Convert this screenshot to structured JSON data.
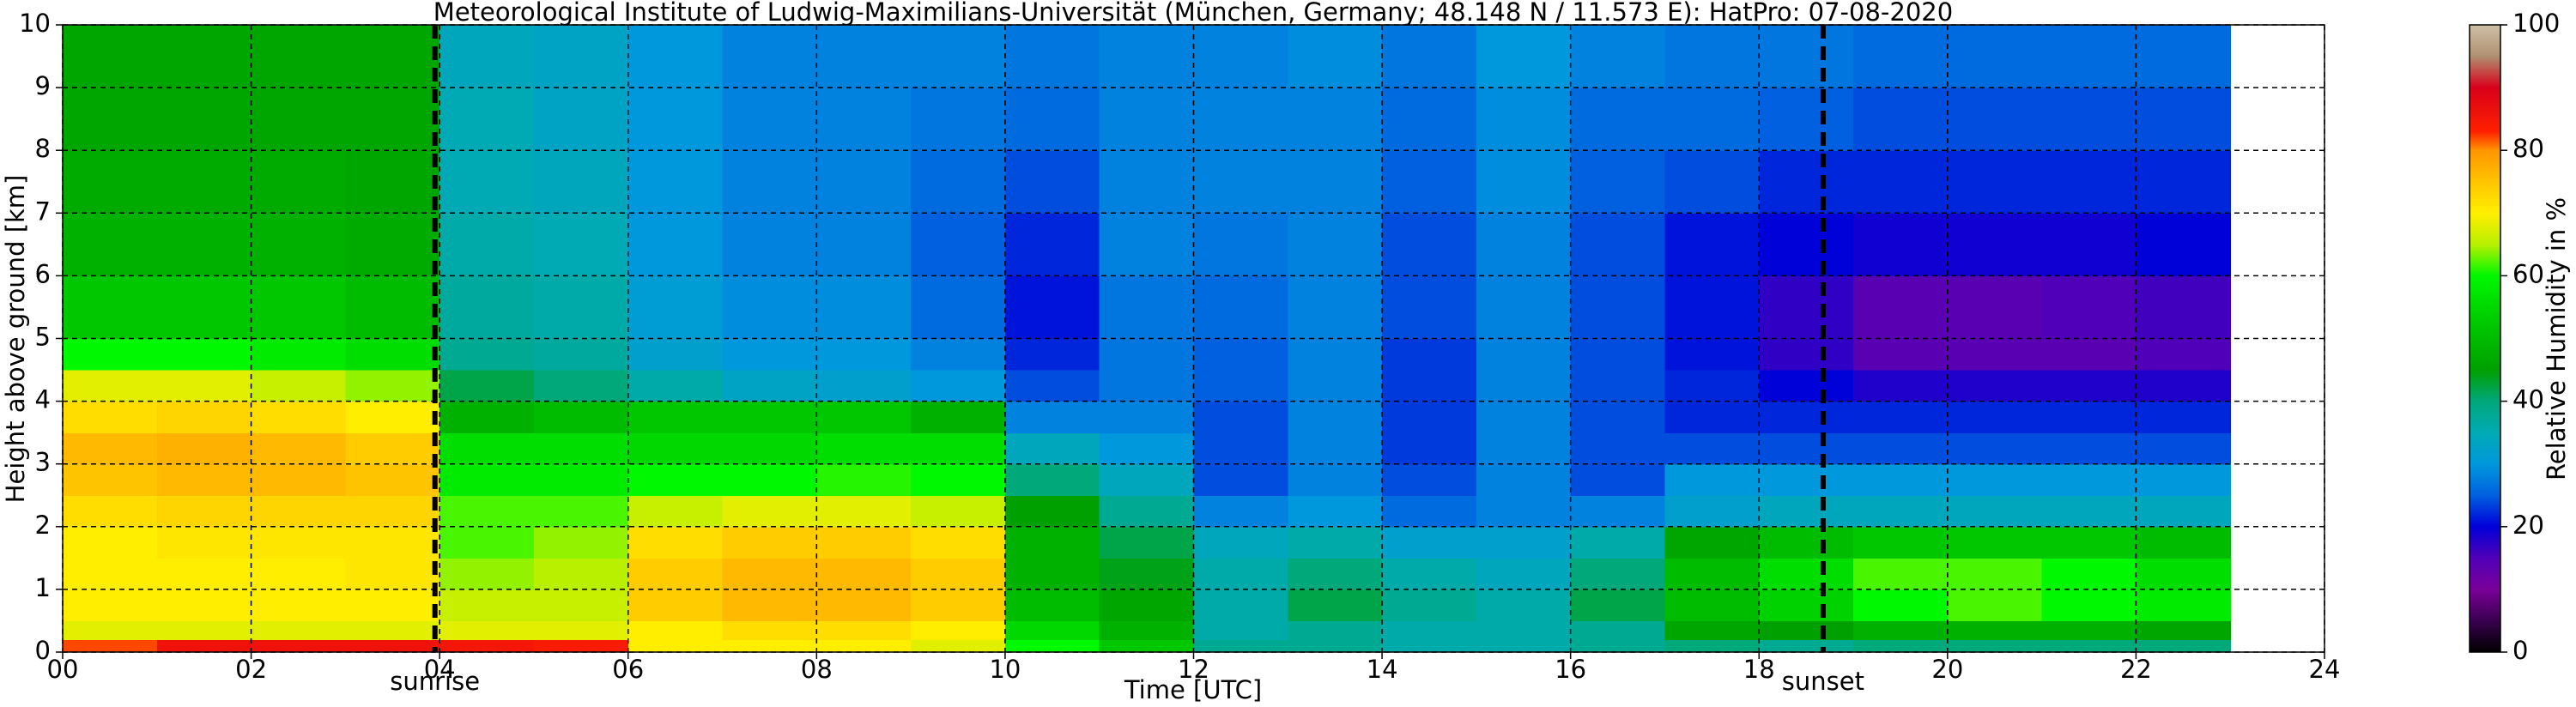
{
  "chart_data": {
    "type": "heatmap",
    "title": "Meteorological Institute of Ludwig-Maximilians-Universität (München, Germany; 48.148 N / 11.573 E):    HatPro: 07-08-2020",
    "x_label": "Time [UTC]",
    "y_label": "Height above ground [km]",
    "colorbar_label": "Relative Humidity in %",
    "x_edges": [
      0,
      1,
      2,
      3,
      4,
      5,
      6,
      7,
      8,
      9,
      10,
      11,
      12,
      13,
      14,
      15,
      16,
      17,
      18,
      19,
      20,
      21,
      22,
      23
    ],
    "y_edges": [
      0,
      0.2,
      0.5,
      1,
      1.5,
      2,
      2.5,
      3,
      3.5,
      4,
      4.5,
      5,
      6,
      7,
      8,
      9,
      10
    ],
    "values": [
      [
        82,
        68,
        70,
        70,
        70,
        72,
        75,
        76,
        72,
        68,
        60,
        52,
        48,
        47,
        46,
        46
      ],
      [
        86,
        68,
        70,
        70,
        71,
        73,
        76,
        77,
        73,
        68,
        60,
        52,
        48,
        47,
        46,
        46
      ],
      [
        86,
        68,
        70,
        70,
        71,
        73,
        76,
        76,
        72,
        66,
        58,
        52,
        48,
        47,
        46,
        46
      ],
      [
        86,
        68,
        70,
        71,
        71,
        73,
        75,
        74,
        70,
        64,
        56,
        50,
        47,
        46,
        46,
        46
      ],
      [
        85,
        68,
        66,
        64,
        62,
        62,
        58,
        56,
        48,
        42,
        38,
        37,
        36,
        35,
        35,
        34
      ],
      [
        84,
        68,
        66,
        65,
        64,
        62,
        58,
        56,
        50,
        40,
        37,
        36,
        35,
        34,
        33,
        33
      ],
      [
        70,
        70,
        74,
        74,
        72,
        66,
        60,
        55,
        52,
        36,
        32,
        31,
        30,
        30,
        30,
        30
      ],
      [
        70,
        72,
        76,
        76,
        74,
        68,
        60,
        55,
        52,
        33,
        30,
        29,
        28,
        28,
        28,
        28
      ],
      [
        70,
        72,
        76,
        76,
        74,
        68,
        61,
        56,
        52,
        32,
        30,
        29,
        28,
        28,
        28,
        28
      ],
      [
        68,
        70,
        74,
        74,
        72,
        66,
        60,
        56,
        48,
        30,
        28,
        26,
        25,
        26,
        27,
        28
      ],
      [
        60,
        55,
        50,
        48,
        48,
        45,
        40,
        34,
        28,
        24,
        22,
        21,
        22,
        24,
        26,
        27
      ],
      [
        52,
        48,
        46,
        44,
        42,
        38,
        34,
        30,
        28,
        27,
        27,
        27,
        28,
        28,
        28,
        28
      ],
      [
        38,
        36,
        36,
        36,
        34,
        28,
        24,
        24,
        24,
        25,
        25,
        26,
        27,
        28,
        28,
        28
      ],
      [
        38,
        38,
        42,
        40,
        36,
        30,
        28,
        28,
        28,
        28,
        28,
        28,
        28,
        28,
        28,
        29
      ],
      [
        36,
        36,
        38,
        36,
        32,
        26,
        24,
        23,
        23,
        23,
        23,
        24,
        24,
        25,
        26,
        27
      ],
      [
        36,
        36,
        36,
        34,
        32,
        28,
        28,
        28,
        28,
        28,
        28,
        28,
        28,
        29,
        29,
        30
      ],
      [
        38,
        38,
        42,
        40,
        36,
        28,
        24,
        24,
        24,
        24,
        24,
        24,
        24,
        25,
        26,
        28
      ],
      [
        40,
        46,
        50,
        50,
        46,
        32,
        30,
        24,
        22,
        22,
        21,
        21,
        21,
        24,
        26,
        27
      ],
      [
        38,
        45,
        54,
        56,
        50,
        34,
        30,
        24,
        22,
        20,
        17,
        17,
        20,
        22,
        25,
        27
      ],
      [
        40,
        48,
        60,
        62,
        52,
        34,
        30,
        24,
        22,
        18,
        14,
        14,
        19,
        22,
        24,
        26
      ],
      [
        40,
        48,
        62,
        62,
        52,
        34,
        30,
        24,
        22,
        18,
        14,
        14,
        19,
        22,
        24,
        26
      ],
      [
        40,
        48,
        60,
        60,
        52,
        34,
        30,
        24,
        22,
        18,
        14,
        15,
        19,
        22,
        24,
        26
      ],
      [
        40,
        46,
        58,
        56,
        50,
        34,
        30,
        24,
        22,
        18,
        15,
        16,
        20,
        22,
        24,
        26
      ]
    ],
    "xlim": [
      0,
      24
    ],
    "ylim": [
      0,
      10
    ],
    "zlim": [
      0,
      100
    ],
    "xticks": [
      {
        "value": 0,
        "label": "00"
      },
      {
        "value": 2,
        "label": "02"
      },
      {
        "value": 4,
        "label": "04"
      },
      {
        "value": 6,
        "label": "06"
      },
      {
        "value": 8,
        "label": "08"
      },
      10,
      12,
      14,
      16,
      18,
      20,
      22,
      24
    ],
    "yticks": [
      0,
      1,
      2,
      3,
      4,
      5,
      6,
      7,
      8,
      9,
      10
    ],
    "colorbar_ticks": [
      0,
      20,
      40,
      60,
      80,
      100
    ],
    "grid": true,
    "colorscale": [
      [
        0,
        "#000000"
      ],
      [
        5,
        "#3a0050"
      ],
      [
        10,
        "#7a009a"
      ],
      [
        15,
        "#5000b8"
      ],
      [
        20,
        "#0000d8"
      ],
      [
        25,
        "#0060e0"
      ],
      [
        30,
        "#0098dc"
      ],
      [
        35,
        "#00aab4"
      ],
      [
        40,
        "#00a87a"
      ],
      [
        45,
        "#00a000"
      ],
      [
        55,
        "#00d800"
      ],
      [
        60,
        "#00f800"
      ],
      [
        65,
        "#b8f000"
      ],
      [
        70,
        "#ffee00"
      ],
      [
        75,
        "#ffc400"
      ],
      [
        80,
        "#ff9400"
      ],
      [
        83,
        "#ff2000"
      ],
      [
        90,
        "#d8001a"
      ],
      [
        95,
        "#b09070"
      ],
      [
        100,
        "#cec0a8"
      ]
    ],
    "annotations": [
      {
        "x": 3.95,
        "label": "sunrise"
      },
      {
        "x": 18.68,
        "label": "sunset"
      }
    ]
  }
}
